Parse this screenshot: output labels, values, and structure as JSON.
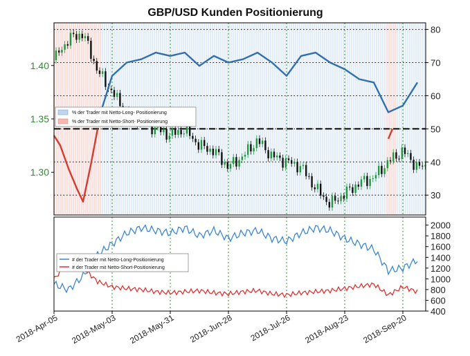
{
  "chart_data": [
    {
      "type": "line",
      "title": "GBP/USD Kunden Positionierung",
      "price_axis_ticks": [
        "1.30",
        "1.35",
        "1.40"
      ],
      "pct_axis_ticks": [
        "30",
        "40",
        "50",
        "60",
        "70",
        "80"
      ],
      "x_tick_labels": [
        "2018-Apr-05",
        "2018-May-03",
        "2018-May-31",
        "2018-Jun-28",
        "2018-Jul-26",
        "2018-Aug-23",
        "2018-Sep-20"
      ],
      "reference_level": 50,
      "legend_placement": "left-middle",
      "series": [
        {
          "name": "% der Trader  mit Netto-Long- Positionierung",
          "color": "#2f6fb0",
          "x_dates": [
            "2018-Apr-05",
            "2018-Apr-12",
            "2018-Apr-19",
            "2018-Apr-26",
            "2018-May-03",
            "2018-May-10",
            "2018-May-17",
            "2018-May-24",
            "2018-May-31",
            "2018-Jun-07",
            "2018-Jun-14",
            "2018-Jun-21",
            "2018-Jun-28",
            "2018-Jul-05",
            "2018-Jul-12",
            "2018-Jul-19",
            "2018-Jul-26",
            "2018-Aug-02",
            "2018-Aug-09",
            "2018-Aug-16",
            "2018-Aug-23",
            "2018-Aug-30",
            "2018-Sep-06",
            "2018-Sep-13",
            "2018-Sep-20",
            "2018-Sep-27"
          ],
          "values": [
            null,
            null,
            null,
            52,
            66,
            70,
            71,
            73,
            72,
            73,
            69,
            72,
            70,
            71,
            73,
            70,
            66,
            72,
            73,
            70,
            68,
            65,
            64,
            55,
            57,
            64
          ]
        },
        {
          "name": "% der Trader  mit Netto-Short- Positionierung",
          "color": "#d63a2e",
          "x_dates": [
            "2018-Apr-05",
            "2018-Apr-08",
            "2018-Apr-12",
            "2018-Apr-16",
            "2018-Apr-19",
            "2018-Apr-23",
            "2018-Apr-26",
            "2018-Sep-13",
            "2018-Sep-15"
          ],
          "values": [
            48,
            45,
            38,
            32,
            28,
            40,
            50,
            47,
            50
          ]
        }
      ],
      "price_close": {
        "name": "GBP/USD",
        "color": "#1f8b3a",
        "x_dates": [
          "2018-Apr-05",
          "2018-Apr-12",
          "2018-Apr-19",
          "2018-Apr-26",
          "2018-May-03",
          "2018-May-10",
          "2018-May-17",
          "2018-May-24",
          "2018-May-31",
          "2018-Jun-07",
          "2018-Jun-14",
          "2018-Jun-21",
          "2018-Jun-28",
          "2018-Jul-05",
          "2018-Jul-12",
          "2018-Jul-19",
          "2018-Jul-26",
          "2018-Aug-02",
          "2018-Aug-09",
          "2018-Aug-16",
          "2018-Aug-23",
          "2018-Aug-30",
          "2018-Sep-06",
          "2018-Sep-13",
          "2018-Sep-20",
          "2018-Sep-27"
        ],
        "values": [
          1.405,
          1.425,
          1.43,
          1.395,
          1.375,
          1.355,
          1.35,
          1.34,
          1.335,
          1.34,
          1.325,
          1.32,
          1.305,
          1.315,
          1.33,
          1.315,
          1.31,
          1.305,
          1.285,
          1.27,
          1.28,
          1.29,
          1.295,
          1.31,
          1.32,
          1.305
        ]
      }
    },
    {
      "type": "line",
      "count_axis_ticks": [
        "400",
        "600",
        "800",
        "1000",
        "1200",
        "1400",
        "1600",
        "1800",
        "2000"
      ],
      "legend_placement": "left-middle",
      "series": [
        {
          "name": "# der Trader  mit Netto-Long-Positionierung",
          "color": "#3a86d4",
          "x_dates": [
            "2018-Apr-05",
            "2018-Apr-12",
            "2018-Apr-19",
            "2018-Apr-26",
            "2018-May-03",
            "2018-May-10",
            "2018-May-17",
            "2018-May-24",
            "2018-May-31",
            "2018-Jun-07",
            "2018-Jun-14",
            "2018-Jun-21",
            "2018-Jun-28",
            "2018-Jul-05",
            "2018-Jul-12",
            "2018-Jul-19",
            "2018-Jul-26",
            "2018-Aug-02",
            "2018-Aug-09",
            "2018-Aug-16",
            "2018-Aug-23",
            "2018-Aug-30",
            "2018-Sep-06",
            "2018-Sep-13",
            "2018-Sep-20",
            "2018-Sep-27"
          ],
          "values": [
            900,
            800,
            1050,
            1450,
            1650,
            1850,
            1950,
            1900,
            1850,
            1950,
            1800,
            1900,
            1750,
            1850,
            1900,
            1750,
            1700,
            1850,
            1950,
            1900,
            1750,
            1650,
            1550,
            1150,
            1200,
            1350
          ]
        },
        {
          "name": "# der Trader  mit Netto-Short-Positionierung",
          "color": "#e03232",
          "x_dates": [
            "2018-Apr-05",
            "2018-Apr-12",
            "2018-Apr-19",
            "2018-Apr-26",
            "2018-May-03",
            "2018-May-10",
            "2018-May-17",
            "2018-May-24",
            "2018-May-31",
            "2018-Jun-07",
            "2018-Jun-14",
            "2018-Jun-21",
            "2018-Jun-28",
            "2018-Jul-05",
            "2018-Jul-12",
            "2018-Jul-19",
            "2018-Jul-26",
            "2018-Aug-02",
            "2018-Aug-09",
            "2018-Aug-16",
            "2018-Aug-23",
            "2018-Aug-30",
            "2018-Sep-06",
            "2018-Sep-13",
            "2018-Sep-20",
            "2018-Sep-27"
          ],
          "values": [
            1000,
            1300,
            1200,
            950,
            850,
            820,
            800,
            760,
            740,
            760,
            780,
            740,
            720,
            760,
            780,
            720,
            700,
            740,
            760,
            780,
            820,
            860,
            900,
            700,
            850,
            760
          ]
        }
      ]
    }
  ]
}
